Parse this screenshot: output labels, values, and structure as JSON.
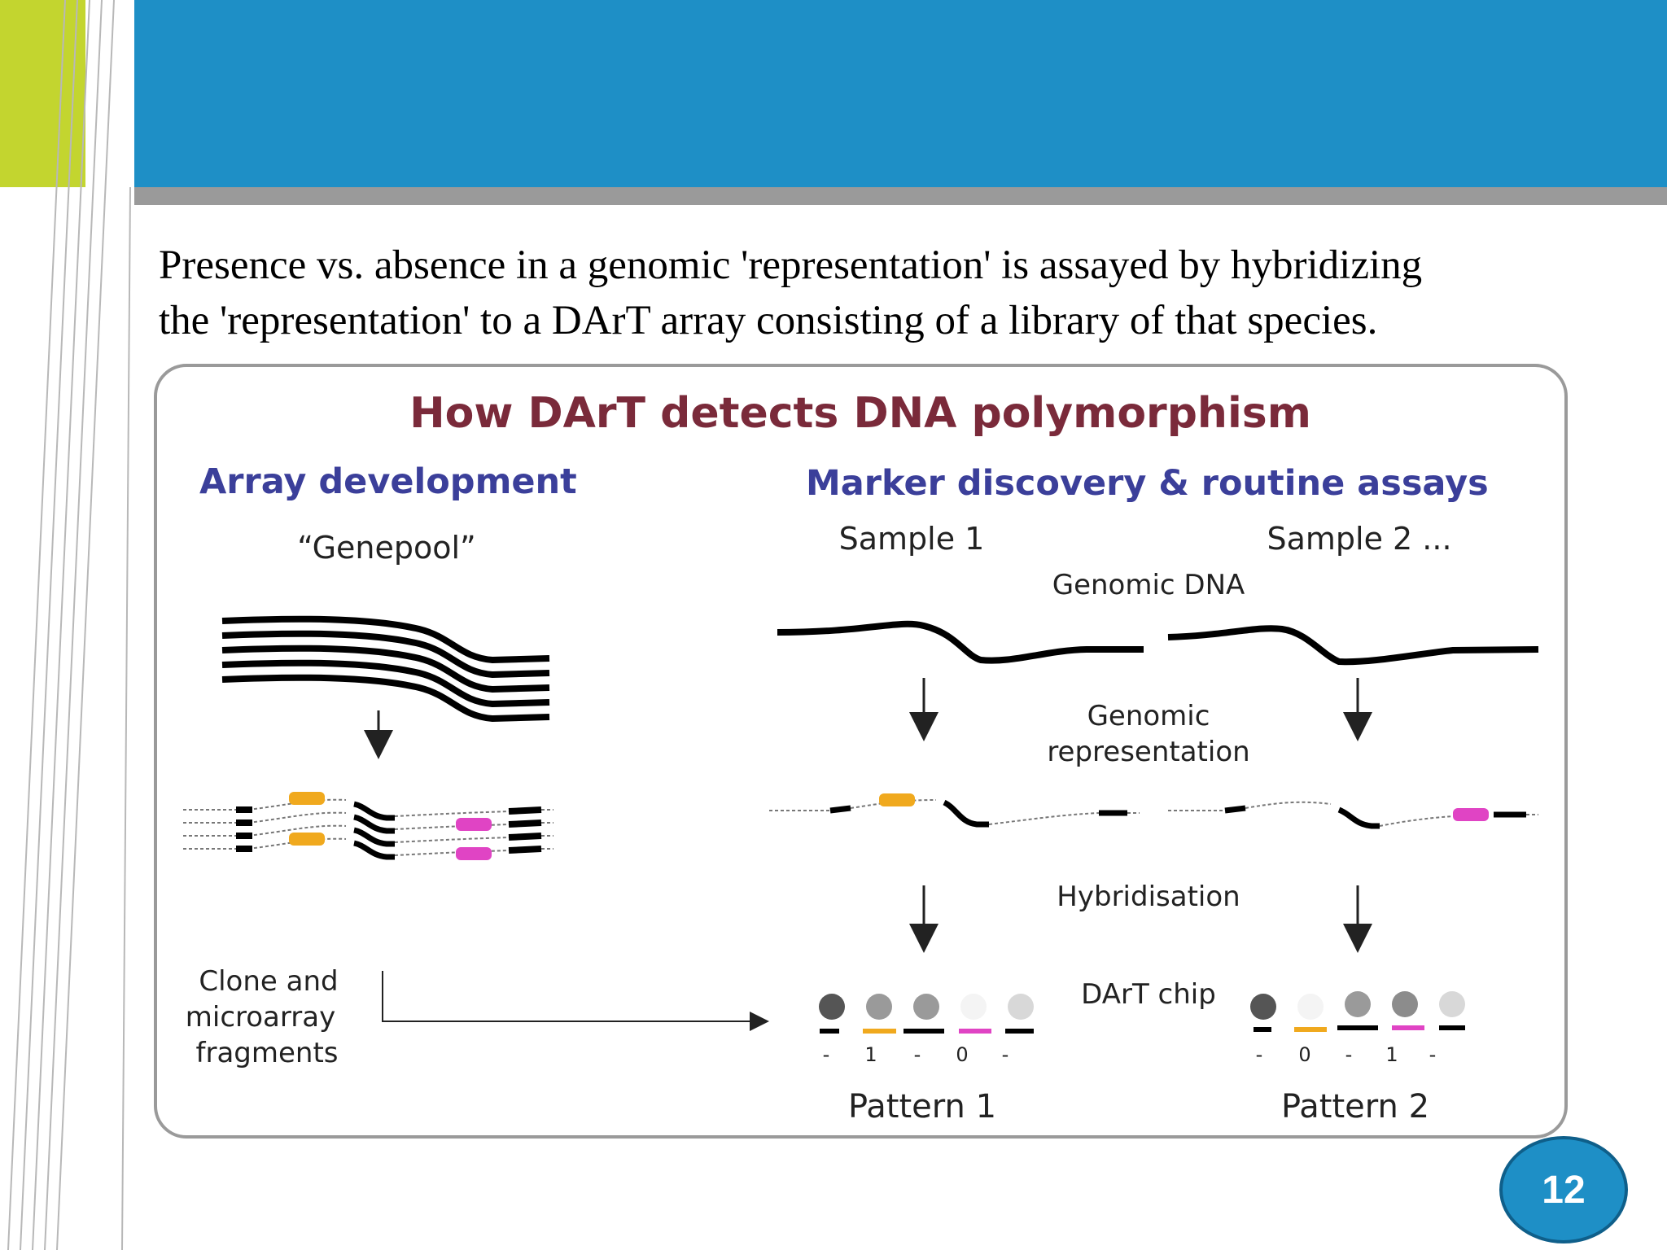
{
  "slide": {
    "intro_line1": "Presence vs. absence in a genomic 'representation' is assayed by hybridizing",
    "intro_line2": "the 'representation' to a DArT array consisting of a library of that species.",
    "page_number": "12"
  },
  "figure": {
    "title": "How DArT detects DNA polymorphism",
    "left_heading": "Array development",
    "genepool_label": "“Genepool”",
    "clone_label_line1": "Clone and",
    "clone_label_line2": "microarray",
    "clone_label_line3": "fragments",
    "right_heading": "Marker discovery & routine assays",
    "sample1": "Sample 1",
    "sample2": "Sample 2 ...",
    "genomic_dna": "Genomic DNA",
    "genomic_rep_line1": "Genomic",
    "genomic_rep_line2": "representation",
    "hybridisation": "Hybridisation",
    "dart_chip": "DArT chip",
    "pattern1": "Pattern 1",
    "pattern2": "Pattern 2",
    "pattern1_scores": [
      "-",
      "1",
      "-",
      "0",
      "-"
    ],
    "pattern2_scores": [
      "-",
      "0",
      "-",
      "1",
      "-"
    ]
  },
  "colors": {
    "header_blue": "#1e8fc6",
    "accent_green": "#c3d52f",
    "title_maroon": "#7a2a3a",
    "heading_blue": "#3b3f9a",
    "orange_fragment": "#f0a91e",
    "magenta_fragment": "#e044c4"
  }
}
